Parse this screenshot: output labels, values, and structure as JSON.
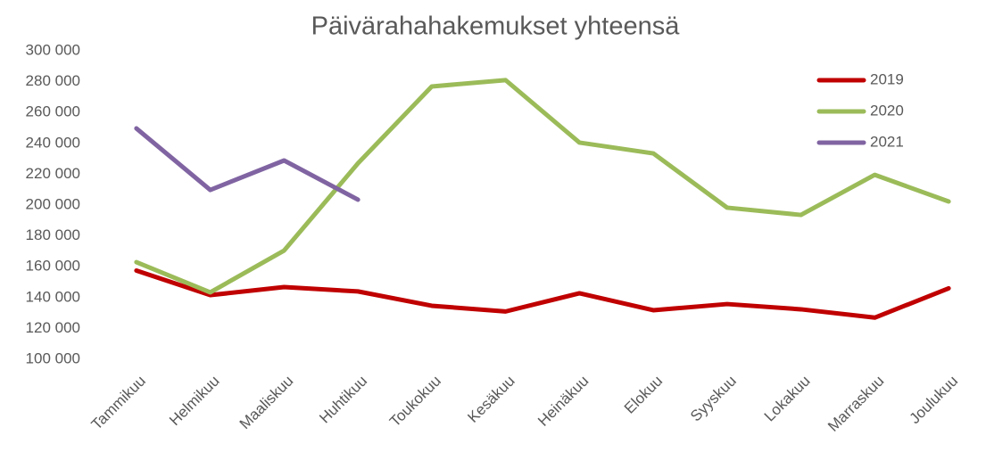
{
  "chart_data": {
    "type": "line",
    "title": "Päivärahahakemukset yhteensä",
    "categories": [
      "Tammikuu",
      "Helmikuu",
      "Maaliskuu",
      "Huhtikuu",
      "Toukokuu",
      "Kesäkuu",
      "Heinäkuu",
      "Elokuu",
      "Syyskuu",
      "Lokakuu",
      "Marraskuu",
      "Joulukuu"
    ],
    "series": [
      {
        "name": "2019",
        "color": "#c00000",
        "values": [
          157500,
          141600,
          146800,
          144000,
          134700,
          131000,
          142800,
          131800,
          135800,
          132400,
          127000,
          146000
        ]
      },
      {
        "name": "2020",
        "color": "#9bbb59",
        "values": [
          163000,
          143400,
          170500,
          227000,
          276900,
          281000,
          240500,
          233500,
          198300,
          193600,
          219600,
          202300
        ]
      },
      {
        "name": "2021",
        "color": "#8064a2",
        "values": [
          249700,
          209800,
          228900,
          203500,
          null,
          null,
          null,
          null,
          null,
          null,
          null,
          null
        ]
      }
    ],
    "ylim": [
      100000,
      300000
    ],
    "yticks": [
      {
        "value": 100000,
        "label": "100 000"
      },
      {
        "value": 120000,
        "label": "120 000"
      },
      {
        "value": 140000,
        "label": "140 000"
      },
      {
        "value": 160000,
        "label": "160 000"
      },
      {
        "value": 180000,
        "label": "180 000"
      },
      {
        "value": 200000,
        "label": "200 000"
      },
      {
        "value": 220000,
        "label": "220 000"
      },
      {
        "value": 240000,
        "label": "240 000"
      },
      {
        "value": 260000,
        "label": "260 000"
      },
      {
        "value": 280000,
        "label": "280 000"
      },
      {
        "value": 300000,
        "label": "300 000"
      }
    ],
    "grid": false,
    "legend": "top-right"
  }
}
